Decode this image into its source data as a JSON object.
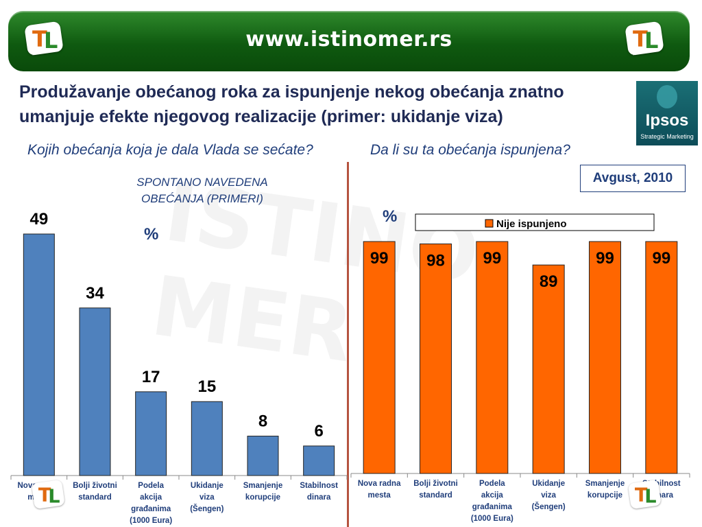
{
  "header": {
    "url": "www.istinomer.rs",
    "logo_left": {
      "t": "T",
      "l": "L"
    },
    "logo_right": {
      "t": "T",
      "l": "L"
    }
  },
  "title": "Produžavanje obećanog roka za ispunjenje nekog obećanja znatno umanjuje efekte njegovog realizacije (primer: ukidanje viza)",
  "ipsos": {
    "name": "Ipsos",
    "tagline": "Strategic Marketing"
  },
  "left_panel": {
    "question": "Kojih obećanja koja je dala Vlada se sećate?",
    "note_line1": "SPONTANO NAVEDENA",
    "note_line2": "OBEĆANJA (PRIMERI)",
    "unit": "%"
  },
  "right_panel": {
    "question": "Da li su ta obećanja ispunjena?",
    "unit": "%",
    "date": "Avgust, 2010"
  },
  "colors": {
    "left_bars": "#4f81bd",
    "right_bars": "#ff6600",
    "banner": "#1a6b1a"
  },
  "watermark": {
    "line1": "ISTINO",
    "line2": "MER"
  },
  "chart_data": [
    {
      "type": "bar",
      "categories": [
        [
          "Nova radna",
          "mesta"
        ],
        [
          "Bolji životni",
          "standard"
        ],
        [
          "Podela",
          "akcija",
          "građanima",
          "(1000 Eura)"
        ],
        [
          "Ukidanje",
          "viza",
          "(Šengen)"
        ],
        [
          "Smanjenje",
          "korupcije"
        ],
        [
          "Stabilnost",
          "dinara"
        ]
      ],
      "values": [
        49,
        34,
        17,
        15,
        8,
        6
      ],
      "ylim": [
        0,
        50
      ]
    },
    {
      "type": "bar",
      "categories": [
        [
          "Nova radna",
          "mesta"
        ],
        [
          "Bolji životni",
          "standard"
        ],
        [
          "Podela",
          "akcija",
          "građanima",
          "(1000 Eura)"
        ],
        [
          "Ukidanje",
          "viza",
          "(Šengen)"
        ],
        [
          "Smanjenje",
          "korupcije"
        ],
        [
          "Stabilnost",
          "dinara"
        ]
      ],
      "series": [
        {
          "name": "Nije ispunjeno",
          "values": [
            99,
            98,
            99,
            89,
            99,
            99
          ]
        }
      ],
      "legend": "top",
      "ylim": [
        0,
        100
      ]
    }
  ]
}
